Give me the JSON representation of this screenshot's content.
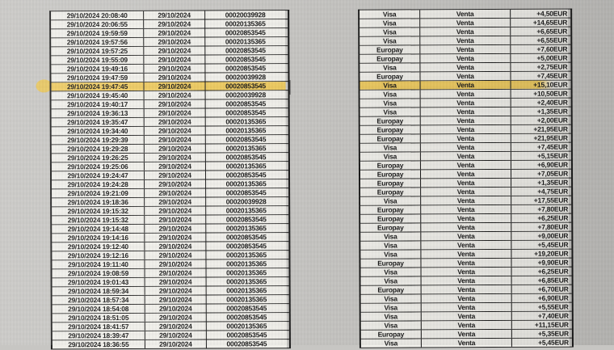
{
  "colors": {
    "paper": "#c7c6c3",
    "cell": "#f0efea",
    "border": "#1a1a1a",
    "text": "#1b1b1b",
    "highlight": "#ecc44e"
  },
  "highlight": {
    "row_index": 8
  },
  "table": {
    "rows": [
      {
        "time": "29/10/2024 20:08:40",
        "date": "29/10/2024",
        "terminal": "00020039928",
        "card": "Visa",
        "operation": "Venta",
        "amount": "+4,50EUR"
      },
      {
        "time": "29/10/2024 20:06:55",
        "date": "29/10/2024",
        "terminal": "00020135365",
        "card": "Visa",
        "operation": "Venta",
        "amount": "+14,65EUR"
      },
      {
        "time": "29/10/2024 19:59:59",
        "date": "29/10/2024",
        "terminal": "00020853545",
        "card": "Visa",
        "operation": "Venta",
        "amount": "+6,65EUR"
      },
      {
        "time": "29/10/2024 19:57:56",
        "date": "29/10/2024",
        "terminal": "00020135365",
        "card": "Visa",
        "operation": "Venta",
        "amount": "+6,55EUR"
      },
      {
        "time": "29/10/2024 19:57:25",
        "date": "29/10/2024",
        "terminal": "00020853545",
        "card": "Europay",
        "operation": "Venta",
        "amount": "+7,60EUR"
      },
      {
        "time": "29/10/2024 19:55:09",
        "date": "29/10/2024",
        "terminal": "00020853545",
        "card": "Europay",
        "operation": "Venta",
        "amount": "+5,00EUR"
      },
      {
        "time": "29/10/2024 19:49:16",
        "date": "29/10/2024",
        "terminal": "00020853545",
        "card": "Visa",
        "operation": "Venta",
        "amount": "+2,75EUR"
      },
      {
        "time": "29/10/2024 19:47:59",
        "date": "29/10/2024",
        "terminal": "00020039928",
        "card": "Europay",
        "operation": "Venta",
        "amount": "+7,45EUR"
      },
      {
        "time": "29/10/2024 19:47:45",
        "date": "29/10/2024",
        "terminal": "00020853545",
        "card": "Visa",
        "operation": "Venta",
        "amount": "+15,10EUR"
      },
      {
        "time": "29/10/2024 19:45:40",
        "date": "29/10/2024",
        "terminal": "00020039928",
        "card": "Visa",
        "operation": "Venta",
        "amount": "+10,50EUR"
      },
      {
        "time": "29/10/2024 19:40:17",
        "date": "29/10/2024",
        "terminal": "00020853545",
        "card": "Visa",
        "operation": "Venta",
        "amount": "+2,40EUR"
      },
      {
        "time": "29/10/2024 19:36:13",
        "date": "29/10/2024",
        "terminal": "00020853545",
        "card": "Visa",
        "operation": "Venta",
        "amount": "+1,35EUR"
      },
      {
        "time": "29/10/2024 19:35:47",
        "date": "29/10/2024",
        "terminal": "00020135365",
        "card": "Europay",
        "operation": "Venta",
        "amount": "+2,00EUR"
      },
      {
        "time": "29/10/2024 19:34:40",
        "date": "29/10/2024",
        "terminal": "00020135365",
        "card": "Europay",
        "operation": "Venta",
        "amount": "+21,95EUR"
      },
      {
        "time": "29/10/2024 19:29:39",
        "date": "29/10/2024",
        "terminal": "00020853545",
        "card": "Europay",
        "operation": "Venta",
        "amount": "+21,95EUR"
      },
      {
        "time": "29/10/2024 19:29:28",
        "date": "29/10/2024",
        "terminal": "00020135365",
        "card": "Visa",
        "operation": "Venta",
        "amount": "+7,45EUR"
      },
      {
        "time": "29/10/2024 19:26:25",
        "date": "29/10/2024",
        "terminal": "00020853545",
        "card": "Visa",
        "operation": "Venta",
        "amount": "+5,15EUR"
      },
      {
        "time": "29/10/2024 19:25:06",
        "date": "29/10/2024",
        "terminal": "00020135365",
        "card": "Europay",
        "operation": "Venta",
        "amount": "+6,90EUR"
      },
      {
        "time": "29/10/2024 19:24:47",
        "date": "29/10/2024",
        "terminal": "00020853545",
        "card": "Europay",
        "operation": "Venta",
        "amount": "+7,05EUR"
      },
      {
        "time": "29/10/2024 19:24:28",
        "date": "29/10/2024",
        "terminal": "00020135365",
        "card": "Europay",
        "operation": "Venta",
        "amount": "+1,35EUR"
      },
      {
        "time": "29/10/2024 19:21:09",
        "date": "29/10/2024",
        "terminal": "00020853545",
        "card": "Europay",
        "operation": "Venta",
        "amount": "+4,75EUR"
      },
      {
        "time": "29/10/2024 19:18:36",
        "date": "29/10/2024",
        "terminal": "00020039928",
        "card": "Visa",
        "operation": "Venta",
        "amount": "+17,55EUR"
      },
      {
        "time": "29/10/2024 19:15:32",
        "date": "29/10/2024",
        "terminal": "00020135365",
        "card": "Europay",
        "operation": "Venta",
        "amount": "+7,80EUR"
      },
      {
        "time": "29/10/2024 19:15:32",
        "date": "29/10/2024",
        "terminal": "00020853545",
        "card": "Europay",
        "operation": "Venta",
        "amount": "+6,25EUR"
      },
      {
        "time": "29/10/2024 19:14:48",
        "date": "29/10/2024",
        "terminal": "00020135365",
        "card": "Europay",
        "operation": "Venta",
        "amount": "+7,80EUR"
      },
      {
        "time": "29/10/2024 19:14:16",
        "date": "29/10/2024",
        "terminal": "00020853545",
        "card": "Visa",
        "operation": "Venta",
        "amount": "+9,00EUR"
      },
      {
        "time": "29/10/2024 19:12:40",
        "date": "29/10/2024",
        "terminal": "00020853545",
        "card": "Visa",
        "operation": "Venta",
        "amount": "+5,45EUR"
      },
      {
        "time": "29/10/2024 19:12:16",
        "date": "29/10/2024",
        "terminal": "00020135365",
        "card": "Visa",
        "operation": "Venta",
        "amount": "+19,20EUR"
      },
      {
        "time": "29/10/2024 19:11:40",
        "date": "29/10/2024",
        "terminal": "00020135365",
        "card": "Europay",
        "operation": "Venta",
        "amount": "+9,90EUR"
      },
      {
        "time": "29/10/2024 19:08:59",
        "date": "29/10/2024",
        "terminal": "00020135365",
        "card": "Visa",
        "operation": "Venta",
        "amount": "+6,25EUR"
      },
      {
        "time": "29/10/2024 19:01:43",
        "date": "29/10/2024",
        "terminal": "00020135365",
        "card": "Visa",
        "operation": "Venta",
        "amount": "+6,85EUR"
      },
      {
        "time": "29/10/2024 18:59:34",
        "date": "29/10/2024",
        "terminal": "00020135365",
        "card": "Europay",
        "operation": "Venta",
        "amount": "+6,70EUR"
      },
      {
        "time": "29/10/2024 18:57:34",
        "date": "29/10/2024",
        "terminal": "00020135365",
        "card": "Visa",
        "operation": "Venta",
        "amount": "+6,90EUR"
      },
      {
        "time": "29/10/2024 18:54:08",
        "date": "29/10/2024",
        "terminal": "00020853545",
        "card": "Visa",
        "operation": "Venta",
        "amount": "+5,55EUR"
      },
      {
        "time": "29/10/2024 18:51:05",
        "date": "29/10/2024",
        "terminal": "00020853545",
        "card": "Visa",
        "operation": "Venta",
        "amount": "+7,40EUR"
      },
      {
        "time": "29/10/2024 18:41:57",
        "date": "29/10/2024",
        "terminal": "00020135365",
        "card": "Visa",
        "operation": "Venta",
        "amount": "+11,15EUR"
      },
      {
        "time": "29/10/2024 18:39:47",
        "date": "29/10/2024",
        "terminal": "00020853545",
        "card": "Europay",
        "operation": "Venta",
        "amount": "+5,35EUR"
      },
      {
        "time": "29/10/2024 18:36:55",
        "date": "29/10/2024",
        "terminal": "00020853545",
        "card": "Visa",
        "operation": "Venta",
        "amount": "+5,45EUR"
      }
    ]
  }
}
